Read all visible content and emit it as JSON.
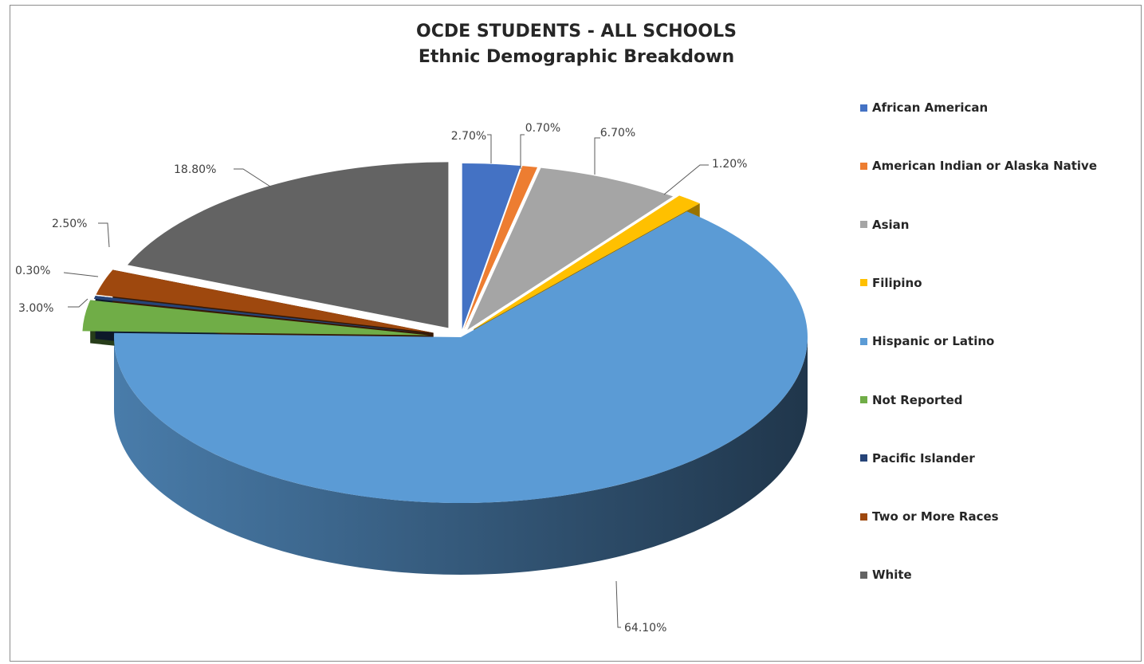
{
  "chart_data": {
    "type": "pie",
    "title": "OCDE STUDENTS - ALL SCHOOLS",
    "subtitle": "Ethnic Demographic Breakdown",
    "legend_position": "right",
    "slices": [
      {
        "name": "African American",
        "value": 2.7,
        "label": "2.70%",
        "color": "#4472c4"
      },
      {
        "name": "American Indian or Alaska Native",
        "value": 0.7,
        "label": "0.70%",
        "color": "#ed7d31"
      },
      {
        "name": "Asian",
        "value": 6.7,
        "label": "6.70%",
        "color": "#a5a5a5"
      },
      {
        "name": "Filipino",
        "value": 1.2,
        "label": "1.20%",
        "color": "#ffc000"
      },
      {
        "name": "Hispanic or Latino",
        "value": 64.1,
        "label": "64.10%",
        "color": "#5b9bd5"
      },
      {
        "name": "Not Reported",
        "value": 3.0,
        "label": "3.00%",
        "color": "#70ad47"
      },
      {
        "name": "Pacific Islander",
        "value": 0.3,
        "label": "0.30%",
        "color": "#264478"
      },
      {
        "name": "Two or More Races",
        "value": 2.5,
        "label": "2.50%",
        "color": "#9e480e"
      },
      {
        "name": "White",
        "value": 18.8,
        "label": "18.80%",
        "color": "#636363"
      }
    ]
  }
}
